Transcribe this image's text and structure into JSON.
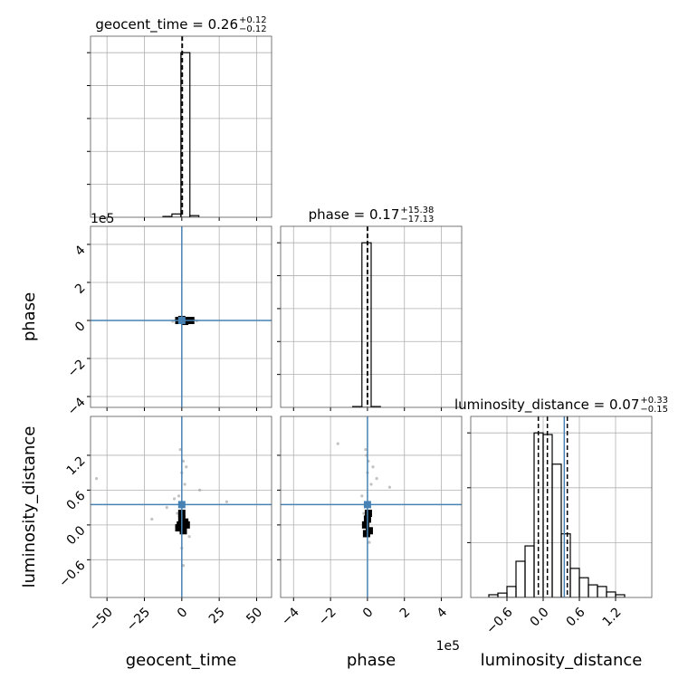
{
  "chart_data": [
    {
      "type": "histogram",
      "title": "geocent_time = 0.26",
      "title_upper": "+0.12",
      "title_lower": "−0.12",
      "bins": [
        -12.6,
        -6.6,
        -0.6,
        5.4,
        11.4
      ],
      "values": [
        0.005,
        0.02,
        1.0,
        0.01
      ],
      "color": "#000000",
      "xlim": [
        -61,
        60
      ],
      "xticks": [
        {
          "value": -50,
          "label": "−50"
        },
        {
          "value": -25,
          "label": "−25"
        },
        0,
        25,
        50
      ],
      "ylim": [
        0,
        1.1
      ],
      "yticks": [
        0.2,
        0.4,
        0.6,
        0.8,
        1.0
      ],
      "show_xticklabels": false,
      "show_yticklabels": false,
      "quantiles": [
        0.14,
        0.26,
        0.38
      ],
      "grid": true
    },
    {
      "type": "scatter",
      "ylabel": "phase",
      "y_offset_label": "1e5",
      "series": [
        {
          "color": "#999999",
          "x": [
            -3,
            2,
            5,
            -6,
            8,
            1,
            -1,
            3,
            -4,
            10
          ],
          "y": [
            0.05,
            -0.03,
            0.02,
            -0.05,
            0.04,
            0.1,
            -0.08,
            0,
            0.03,
            -0.02
          ]
        },
        {
          "color": "#000000",
          "x": [
            -2,
            0,
            2,
            4,
            6
          ],
          "y": [
            0,
            0.05,
            -0.05,
            0,
            0
          ]
        }
      ],
      "xlim": [
        -61,
        60
      ],
      "xticks": [
        {
          "value": -50,
          "label": "−50"
        },
        {
          "value": -25,
          "label": "−25"
        },
        0,
        25,
        50
      ],
      "ylim": [
        -4.57,
        4.95
      ],
      "yticks": [
        {
          "value": -4,
          "label": "−4"
        },
        {
          "value": -2,
          "label": "−2"
        },
        0,
        2,
        4
      ],
      "show_xticklabels": false,
      "truths": [
        0,
        0
      ],
      "truth_color": "#4682b4",
      "grid": true
    },
    {
      "type": "histogram",
      "title": "phase = 0.17",
      "title_upper": "+15.38",
      "title_lower": "−17.13",
      "bins": [
        -0.8,
        -0.3,
        0.2,
        0.7
      ],
      "values": [
        0.005,
        1.0,
        0.005
      ],
      "color": "#000000",
      "xlim": [
        -4.7,
        5.1
      ],
      "xticks": [
        {
          "value": -4,
          "label": "−4"
        },
        {
          "value": -2,
          "label": "−2"
        },
        0,
        2,
        4
      ],
      "ylim": [
        0,
        1.1
      ],
      "yticks": [
        0.2,
        0.4,
        0.6,
        0.8,
        1.0
      ],
      "show_xticklabels": false,
      "show_yticklabels": false,
      "quantiles": [
        -0.00017,
        1.7e-06,
        0.00016
      ],
      "grid": true
    },
    {
      "type": "scatter",
      "xlabel": "geocent_time",
      "ylabel": "luminosity_distance",
      "series": [
        {
          "color": "#999999",
          "x": [
            -1,
            1,
            0,
            2,
            -2,
            -10,
            12,
            30,
            -57,
            -20,
            5,
            -5,
            3,
            -3,
            0,
            1
          ],
          "y": [
            1.3,
            1.1,
            0.9,
            0.7,
            0.5,
            0.3,
            0.6,
            0.4,
            0.8,
            0.1,
            -0.2,
            0.45,
            1.0,
            0.2,
            -0.4,
            -0.7
          ]
        },
        {
          "color": "#000000",
          "x": [
            -1,
            0,
            1,
            2,
            -2,
            0,
            3
          ],
          "y": [
            0,
            0.1,
            -0.1,
            0.05,
            -0.05,
            0.2,
            0
          ]
        }
      ],
      "xlim": [
        -61,
        60
      ],
      "xticks": [
        {
          "value": -50,
          "label": "−50"
        },
        {
          "value": -25,
          "label": "−25"
        },
        0,
        25,
        50
      ],
      "ylim": [
        -1.25,
        1.87
      ],
      "yticks": [
        {
          "value": -0.6,
          "label": "−0.6"
        },
        {
          "value": 0,
          "label": "0.0"
        },
        0.6,
        1.2
      ],
      "truths": [
        0,
        0.35
      ],
      "truth_color": "#4682b4",
      "grid": true
    },
    {
      "type": "scatter",
      "xlabel": "phase",
      "x_offset_label": "1e5",
      "series": [
        {
          "color": "#999999",
          "x": [
            -0.1,
            0.05,
            0,
            0.2,
            -0.3,
            -1.6,
            0.5,
            1.2,
            -0.05,
            0.1,
            -0.2,
            0.3
          ],
          "y": [
            1.3,
            1.1,
            0.9,
            0.7,
            0.5,
            1.4,
            0.8,
            0.65,
            1.2,
            -0.3,
            0.2,
            1.0
          ]
        },
        {
          "color": "#000000",
          "x": [
            -0.1,
            0,
            0.1,
            0.05,
            -0.05
          ],
          "y": [
            0,
            0.1,
            -0.1,
            0.2,
            -0.15
          ]
        }
      ],
      "xlim": [
        -4.7,
        5.1
      ],
      "xticks": [
        {
          "value": -4,
          "label": "−4"
        },
        {
          "value": -2,
          "label": "−2"
        },
        0,
        2,
        4
      ],
      "ylim": [
        -1.25,
        1.87
      ],
      "yticks": [
        {
          "value": -0.6,
          "label": "−0.6"
        },
        {
          "value": 0,
          "label": "0.0"
        },
        0.6,
        1.2
      ],
      "show_yticklabels": false,
      "truths": [
        0,
        0.35
      ],
      "truth_color": "#4682b4",
      "grid": true
    },
    {
      "type": "histogram",
      "title": "luminosity_distance = 0.07",
      "title_upper": "+0.33",
      "title_lower": "−0.15",
      "xlabel": "luminosity_distance",
      "bins": [
        -0.9,
        -0.75,
        -0.6,
        -0.45,
        -0.3,
        -0.15,
        0,
        0.15,
        0.3,
        0.45,
        0.6,
        0.75,
        0.9,
        1.05,
        1.2,
        1.35
      ],
      "values": [
        0.05,
        0.08,
        0.2,
        0.66,
        0.94,
        3.0,
        2.97,
        2.43,
        1.16,
        0.53,
        0.36,
        0.23,
        0.2,
        0.1,
        0.05
      ],
      "color": "#000000",
      "xlim": [
        -1.2,
        1.8
      ],
      "xticks": [
        {
          "value": -0.6,
          "label": "−0.6"
        },
        {
          "value": 0,
          "label": "0.0"
        },
        0.6,
        1.2
      ],
      "ylim": [
        0,
        3.3
      ],
      "yticks": [
        1,
        2,
        3
      ],
      "show_yticklabels": false,
      "quantiles": [
        -0.08,
        0.07,
        0.4
      ],
      "truth": 0.35,
      "truth_color": "#4682b4",
      "grid": true
    }
  ]
}
